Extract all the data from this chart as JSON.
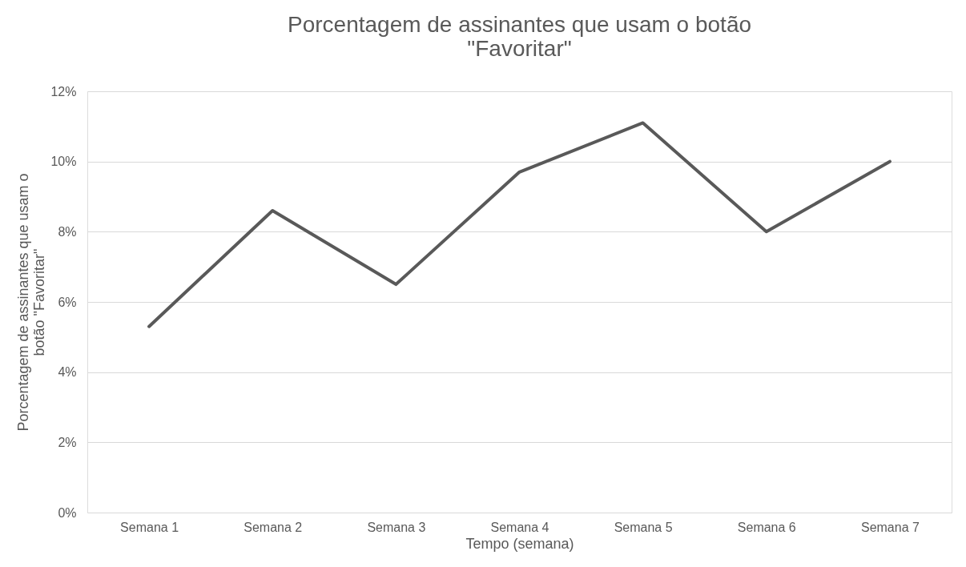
{
  "chart_data": {
    "type": "line",
    "title": [
      "Porcentagem de assinantes que usam o botão",
      "\"Favoritar\""
    ],
    "xlabel": "Tempo (semana)",
    "ylabel": [
      "Porcentagem de assinantes que usam o",
      "botão \"Favoritar\""
    ],
    "categories": [
      "Semana 1",
      "Semana 2",
      "Semana 3",
      "Semana 4",
      "Semana 5",
      "Semana 6",
      "Semana 7"
    ],
    "series": [
      {
        "color": "#595959",
        "values": [
          5.3,
          8.6,
          6.5,
          9.7,
          11.1,
          8.0,
          10.0
        ]
      }
    ],
    "ylim": [
      0,
      12
    ],
    "yticks": [
      {
        "value": 0,
        "label": "0%"
      },
      {
        "value": 2,
        "label": "2%"
      },
      {
        "value": 4,
        "label": "4%"
      },
      {
        "value": 6,
        "label": "6%"
      },
      {
        "value": 8,
        "label": "8%"
      },
      {
        "value": 10,
        "label": "10%"
      },
      {
        "value": 12,
        "label": "12%"
      }
    ],
    "grid": "y",
    "marker": "none",
    "line_style": "solid"
  }
}
